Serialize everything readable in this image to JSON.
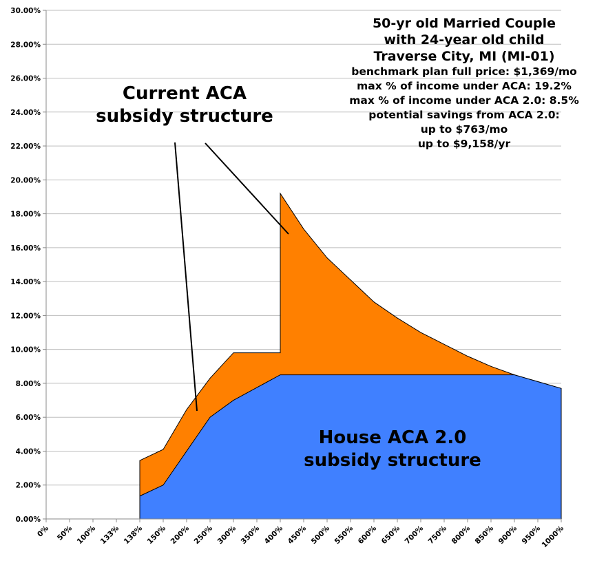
{
  "chart_data": {
    "type": "area",
    "title_lines": [
      "50-yr old Married Couple",
      "with 24-year old child",
      "Traverse City, MI (MI-01)"
    ],
    "info_lines": [
      "benchmark plan full price: $1,369/mo",
      "max % of income under ACA: 19.2%",
      "max % of income under ACA 2.0: 8.5%",
      "potential savings from ACA 2.0:",
      "up to $763/mo",
      "up to $9,158/yr"
    ],
    "categories": [
      "0%",
      "50%",
      "100%",
      "133%",
      "138%",
      "150%",
      "200%",
      "250%",
      "300%",
      "350%",
      "400%",
      "450%",
      "500%",
      "550%",
      "600%",
      "650%",
      "700%",
      "750%",
      "800%",
      "850%",
      "900%",
      "950%",
      "1000%"
    ],
    "yticks": [
      "0.00%",
      "2.00%",
      "4.00%",
      "6.00%",
      "8.00%",
      "10.00%",
      "12.00%",
      "14.00%",
      "16.00%",
      "18.00%",
      "20.00%",
      "22.00%",
      "24.00%",
      "26.00%",
      "28.00%",
      "30.00%"
    ],
    "ylim": [
      0,
      30
    ],
    "grid": true,
    "series": [
      {
        "name": "Current ACA subsidy structure",
        "color": "#FF8000",
        "points": [
          [
            "138%",
            3.45
          ],
          [
            "150%",
            4.1
          ],
          [
            "200%",
            6.45
          ],
          [
            "250%",
            8.3
          ],
          [
            "300%",
            9.8
          ],
          [
            "350%",
            9.8
          ],
          [
            "400%",
            9.8
          ],
          [
            "400%",
            19.2
          ],
          [
            "450%",
            17.1
          ],
          [
            "500%",
            15.4
          ],
          [
            "550%",
            14.1
          ],
          [
            "600%",
            12.8
          ],
          [
            "650%",
            11.85
          ],
          [
            "700%",
            11.0
          ],
          [
            "750%",
            10.3
          ],
          [
            "800%",
            9.6
          ],
          [
            "850%",
            9.0
          ],
          [
            "900%",
            8.5
          ],
          [
            "950%",
            8.1
          ],
          [
            "1000%",
            7.7
          ]
        ]
      },
      {
        "name": "House ACA 2.0 subsidy structure",
        "color": "#4080FF",
        "points": [
          [
            "138%",
            1.35
          ],
          [
            "150%",
            2.0
          ],
          [
            "200%",
            4.0
          ],
          [
            "250%",
            6.0
          ],
          [
            "300%",
            7.0
          ],
          [
            "350%",
            7.75
          ],
          [
            "400%",
            8.5
          ],
          [
            "450%",
            8.5
          ],
          [
            "500%",
            8.5
          ],
          [
            "550%",
            8.5
          ],
          [
            "600%",
            8.5
          ],
          [
            "650%",
            8.5
          ],
          [
            "700%",
            8.5
          ],
          [
            "750%",
            8.5
          ],
          [
            "800%",
            8.5
          ],
          [
            "850%",
            8.5
          ],
          [
            "900%",
            8.5
          ],
          [
            "950%",
            8.1
          ],
          [
            "1000%",
            7.7
          ]
        ]
      }
    ],
    "annotations": {
      "current_line1": "Current ACA",
      "current_line2": "subsidy structure",
      "house_line1": "House ACA 2.0",
      "house_line2": "subsidy structure"
    }
  }
}
